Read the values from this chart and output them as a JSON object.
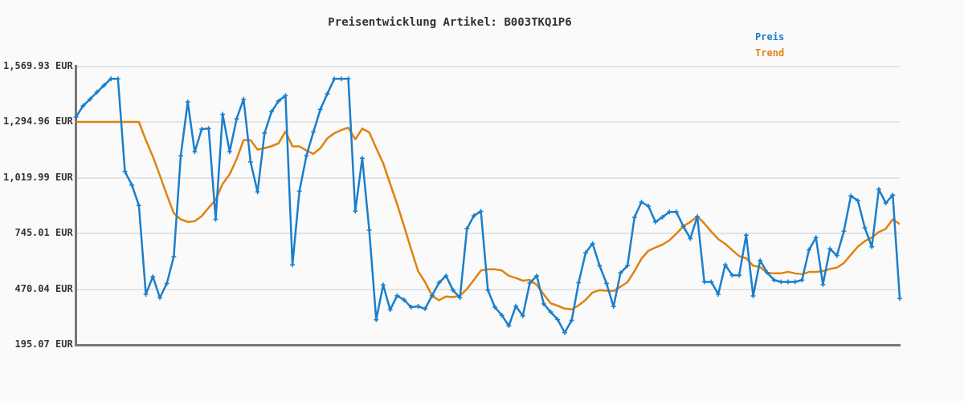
{
  "chart_data": {
    "type": "line",
    "title": "Preisentwicklung Artikel: B003TKQ1P6",
    "categories": [
      null,
      null,
      null,
      null,
      null,
      null,
      null,
      null,
      null,
      null,
      null,
      null,
      null,
      null,
      null,
      null,
      null,
      null,
      null,
      null,
      null,
      null,
      null,
      null,
      null,
      null,
      null,
      null,
      null,
      null,
      null,
      null,
      null,
      null,
      null,
      null,
      null,
      null,
      null,
      null,
      null,
      null,
      null,
      null,
      null,
      null,
      null,
      null,
      null,
      null,
      null,
      null,
      null,
      null,
      null,
      null,
      null,
      null,
      null,
      null,
      null,
      null,
      null,
      null,
      null,
      null,
      null,
      null,
      null,
      null,
      null,
      null,
      null,
      null,
      null,
      null,
      null,
      null,
      null,
      null,
      null,
      null,
      null,
      null,
      null,
      null,
      null,
      null,
      null,
      null,
      null,
      null,
      null,
      null,
      null,
      null,
      null,
      null,
      null,
      null,
      null,
      null,
      null,
      null,
      null,
      null,
      null,
      null,
      null,
      null,
      null,
      null,
      null,
      null,
      null,
      null,
      null,
      null,
      null
    ],
    "series": [
      {
        "name": "Preis",
        "color": "#1a7fcc",
        "marker": "cross",
        "values": [
          1320,
          1375,
          1408,
          1443,
          1476,
          1509,
          1509,
          1051,
          984,
          883,
          445,
          532,
          428,
          498,
          631,
          1129,
          1395,
          1148,
          1260,
          1263,
          815,
          1334,
          1148,
          1311,
          1408,
          1098,
          950,
          1240,
          1346,
          1399,
          1426,
          590,
          954,
          1129,
          1246,
          1358,
          1435,
          1509,
          1509,
          1509,
          855,
          1117,
          761,
          319,
          491,
          368,
          438,
          417,
          381,
          385,
          373,
          438,
          502,
          536,
          465,
          428,
          769,
          833,
          854,
          465,
          381,
          341,
          289,
          386,
          339,
          500,
          536,
          397,
          357,
          320,
          255,
          316,
          502,
          649,
          695,
          586,
          498,
          384,
          550,
          586,
          825,
          900,
          880,
          802,
          826,
          851,
          851,
          780,
          720,
          829,
          506,
          506,
          445,
          590,
          539,
          539,
          737,
          437,
          612,
          552,
          515,
          506,
          506,
          506,
          515,
          664,
          725,
          493,
          669,
          636,
          756,
          931,
          907,
          773,
          679,
          963,
          895,
          935,
          424
        ]
      },
      {
        "name": "Trend",
        "color": "#e0820f",
        "marker": "none",
        "values": [
          1296,
          1296,
          1296,
          1296,
          1296,
          1296,
          1296,
          1296,
          1296,
          1296,
          1206,
          1125,
          1032,
          936,
          845,
          815,
          802,
          806,
          831,
          872,
          912,
          990,
          1037,
          1112,
          1206,
          1206,
          1159,
          1166,
          1176,
          1190,
          1249,
          1175,
          1175,
          1155,
          1138,
          1166,
          1215,
          1240,
          1256,
          1267,
          1210,
          1263,
          1244,
          1166,
          1092,
          990,
          889,
          781,
          667,
          559,
          505,
          438,
          415,
          434,
          431,
          438,
          471,
          516,
          562,
          568,
          568,
          562,
          536,
          525,
          512,
          516,
          491,
          445,
          400,
          388,
          374,
          370,
          390,
          417,
          454,
          465,
          462,
          461,
          482,
          505,
          559,
          620,
          660,
          676,
          690,
          711,
          744,
          781,
          802,
          829,
          795,
          754,
          717,
          694,
          663,
          633,
          623,
          586,
          579,
          550,
          548,
          548,
          556,
          548,
          544,
          555,
          555,
          559,
          570,
          576,
          599,
          640,
          680,
          707,
          725,
          752,
          768,
          815,
          791
        ]
      }
    ],
    "ylim": [
      195.07,
      1569.93
    ],
    "yticks": [
      {
        "value": 195.07,
        "label": "195.07 EUR"
      },
      {
        "value": 470.04,
        "label": "470.04 EUR"
      },
      {
        "value": 745.01,
        "label": "745.01 EUR"
      },
      {
        "value": 1019.99,
        "label": "1,019.99 EUR"
      },
      {
        "value": 1294.96,
        "label": "1,294.96 EUR"
      },
      {
        "value": 1569.93,
        "label": "1,569.93 EUR"
      }
    ],
    "grid": "y",
    "legend": "top right",
    "tick_labels": "y",
    "line_style": "solid"
  }
}
